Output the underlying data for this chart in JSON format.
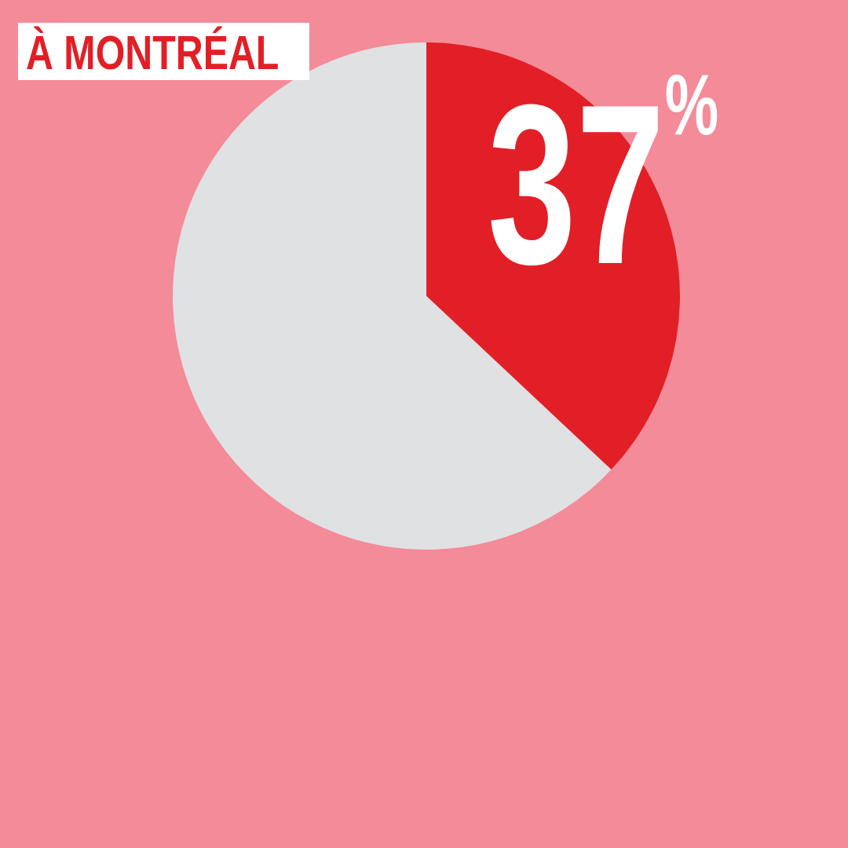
{
  "chart_data": {
    "type": "pie",
    "title": "À MONTRÉAL",
    "categories": [
      null,
      null
    ],
    "values": [
      37,
      63
    ],
    "colors": [
      "#e21f26",
      "#e0e1e3"
    ],
    "value_labels": [
      "37$^{%}$",
      null
    ]
  }
}
